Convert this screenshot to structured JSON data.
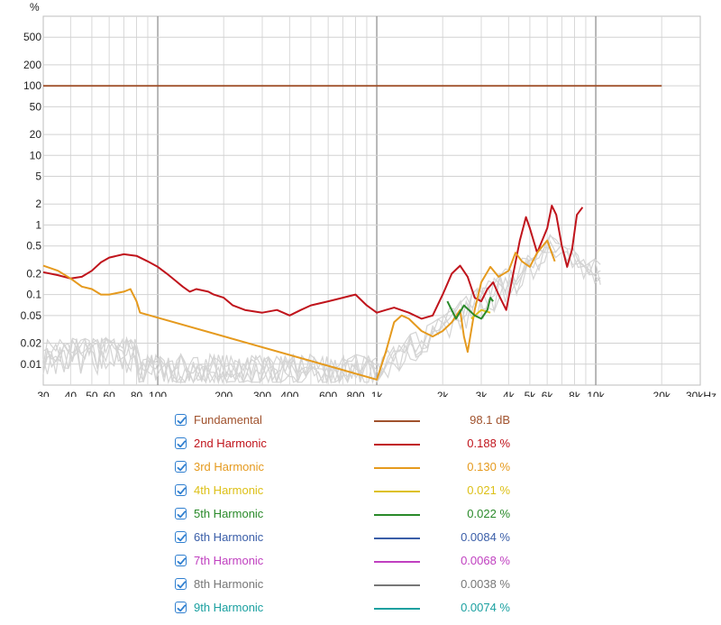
{
  "chart_data": {
    "type": "line",
    "x_scale": "log",
    "y_scale": "log",
    "xlim": [
      30,
      30000
    ],
    "ylim": [
      0.005,
      1000
    ],
    "ylabel": "%",
    "x_ticks": [
      30,
      40,
      50,
      60,
      80,
      100,
      200,
      300,
      400,
      600,
      800,
      1000,
      2000,
      3000,
      4000,
      5000,
      6000,
      8000,
      10000,
      20000,
      30000
    ],
    "x_tick_labels": [
      "30",
      "40",
      "50",
      "60",
      "80",
      "100",
      "200",
      "300",
      "400",
      "600",
      "800",
      "1k",
      "2k",
      "3k",
      "4k",
      "5k",
      "6k",
      "8k",
      "10k",
      "20k",
      "30kHz"
    ],
    "y_ticks": [
      0.01,
      0.02,
      0.05,
      0.1,
      0.2,
      0.5,
      1,
      2,
      5,
      10,
      20,
      50,
      100,
      200,
      500
    ],
    "y_tick_labels": [
      "0.01",
      "0.02",
      "0.05",
      "0.1",
      "0.2",
      "0.5",
      "1",
      "2",
      "5",
      "10",
      "20",
      "50",
      "100",
      "200",
      "500"
    ],
    "grid": true,
    "legend_position": "bottom",
    "series": [
      {
        "name": "Fundamental",
        "color": "#a0522d",
        "value_label": "98.1 dB",
        "points": [
          [
            30,
            100
          ],
          [
            20000,
            100
          ]
        ]
      },
      {
        "name": "2nd Harmonic",
        "color": "#c0141c",
        "value_label": "0.188 %",
        "points": [
          [
            30,
            0.21
          ],
          [
            35,
            0.19
          ],
          [
            40,
            0.17
          ],
          [
            45,
            0.18
          ],
          [
            50,
            0.22
          ],
          [
            55,
            0.29
          ],
          [
            60,
            0.34
          ],
          [
            70,
            0.38
          ],
          [
            80,
            0.36
          ],
          [
            90,
            0.3
          ],
          [
            100,
            0.25
          ],
          [
            110,
            0.2
          ],
          [
            120,
            0.16
          ],
          [
            130,
            0.13
          ],
          [
            140,
            0.11
          ],
          [
            150,
            0.12
          ],
          [
            170,
            0.11
          ],
          [
            180,
            0.1
          ],
          [
            200,
            0.09
          ],
          [
            220,
            0.07
          ],
          [
            250,
            0.06
          ],
          [
            300,
            0.055
          ],
          [
            350,
            0.06
          ],
          [
            400,
            0.05
          ],
          [
            450,
            0.06
          ],
          [
            500,
            0.07
          ],
          [
            600,
            0.08
          ],
          [
            700,
            0.09
          ],
          [
            800,
            0.1
          ],
          [
            900,
            0.07
          ],
          [
            1000,
            0.055
          ],
          [
            1100,
            0.06
          ],
          [
            1200,
            0.065
          ],
          [
            1400,
            0.055
          ],
          [
            1600,
            0.045
          ],
          [
            1800,
            0.05
          ],
          [
            2000,
            0.1
          ],
          [
            2200,
            0.2
          ],
          [
            2400,
            0.26
          ],
          [
            2600,
            0.18
          ],
          [
            2800,
            0.09
          ],
          [
            3000,
            0.08
          ],
          [
            3200,
            0.12
          ],
          [
            3400,
            0.15
          ],
          [
            3600,
            0.1
          ],
          [
            3900,
            0.06
          ],
          [
            4200,
            0.2
          ],
          [
            4500,
            0.6
          ],
          [
            4800,
            1.3
          ],
          [
            5000,
            0.9
          ],
          [
            5400,
            0.4
          ],
          [
            6000,
            0.9
          ],
          [
            6300,
            1.9
          ],
          [
            6600,
            1.4
          ],
          [
            7000,
            0.5
          ],
          [
            7400,
            0.25
          ],
          [
            7800,
            0.45
          ],
          [
            8200,
            1.4
          ],
          [
            8700,
            1.8
          ]
        ]
      },
      {
        "name": "3rd Harmonic",
        "color": "#e59a1e",
        "value_label": "0.130 %",
        "points": [
          [
            30,
            0.26
          ],
          [
            35,
            0.22
          ],
          [
            40,
            0.17
          ],
          [
            45,
            0.13
          ],
          [
            50,
            0.12
          ],
          [
            55,
            0.1
          ],
          [
            60,
            0.1
          ],
          [
            70,
            0.11
          ],
          [
            75,
            0.12
          ],
          [
            80,
            0.08
          ],
          [
            83,
            0.055
          ],
          [
            1000,
            0.006
          ],
          [
            1100,
            0.015
          ],
          [
            1200,
            0.04
          ],
          [
            1300,
            0.05
          ],
          [
            1400,
            0.045
          ],
          [
            1600,
            0.03
          ],
          [
            1800,
            0.025
          ],
          [
            2000,
            0.03
          ],
          [
            2200,
            0.04
          ],
          [
            2400,
            0.06
          ],
          [
            2500,
            0.025
          ],
          [
            2600,
            0.015
          ],
          [
            2800,
            0.06
          ],
          [
            3000,
            0.15
          ],
          [
            3300,
            0.25
          ],
          [
            3600,
            0.18
          ],
          [
            4000,
            0.22
          ],
          [
            4300,
            0.4
          ],
          [
            4600,
            0.3
          ],
          [
            5000,
            0.25
          ],
          [
            5400,
            0.4
          ],
          [
            6000,
            0.6
          ],
          [
            6500,
            0.3
          ]
        ]
      },
      {
        "name": "4th Harmonic",
        "color": "#ddc017",
        "value_label": "0.021 %",
        "points": [
          [
            2700,
            0.045
          ],
          [
            3000,
            0.06
          ],
          [
            3300,
            0.055
          ]
        ]
      },
      {
        "name": "5th Harmonic",
        "color": "#2a8a2a",
        "value_label": "0.022 %",
        "points": [
          [
            2100,
            0.08
          ],
          [
            2300,
            0.045
          ],
          [
            2500,
            0.07
          ],
          [
            2800,
            0.05
          ],
          [
            3000,
            0.045
          ],
          [
            3200,
            0.06
          ],
          [
            3300,
            0.09
          ],
          [
            3400,
            0.08
          ]
        ]
      },
      {
        "name": "6th Harmonic",
        "color": "#3a5ea8",
        "value_label": "0.0084 %",
        "points": []
      },
      {
        "name": "7th Harmonic",
        "color": "#c040c0",
        "value_label": "0.0068 %",
        "points": []
      },
      {
        "name": "8th Harmonic",
        "color": "#777777",
        "value_label": "0.0038 %",
        "points": []
      },
      {
        "name": "9th Harmonic",
        "color": "#1aa0a0",
        "value_label": "0.0074 %",
        "points": []
      }
    ]
  }
}
